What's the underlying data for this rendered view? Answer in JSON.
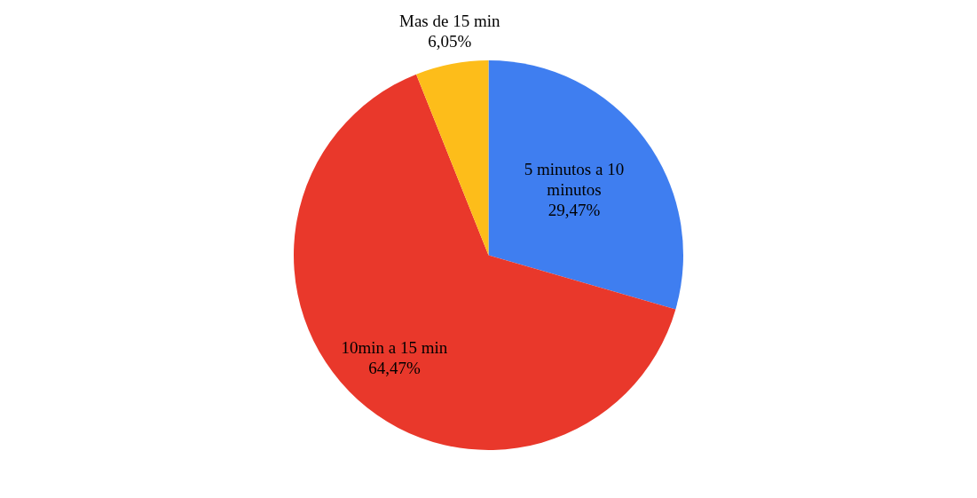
{
  "chart_data": {
    "type": "pie",
    "categories": [
      "5 minutos a 10 minutos",
      "10min a 15 min",
      "Mas de 15 min"
    ],
    "values": [
      29.47,
      64.47,
      6.05
    ],
    "colors": [
      "#3f7ef0",
      "#e9382b",
      "#fdbd1a"
    ],
    "value_labels": [
      "29,47%",
      "64,47%",
      "6,05%"
    ],
    "legend": false
  }
}
